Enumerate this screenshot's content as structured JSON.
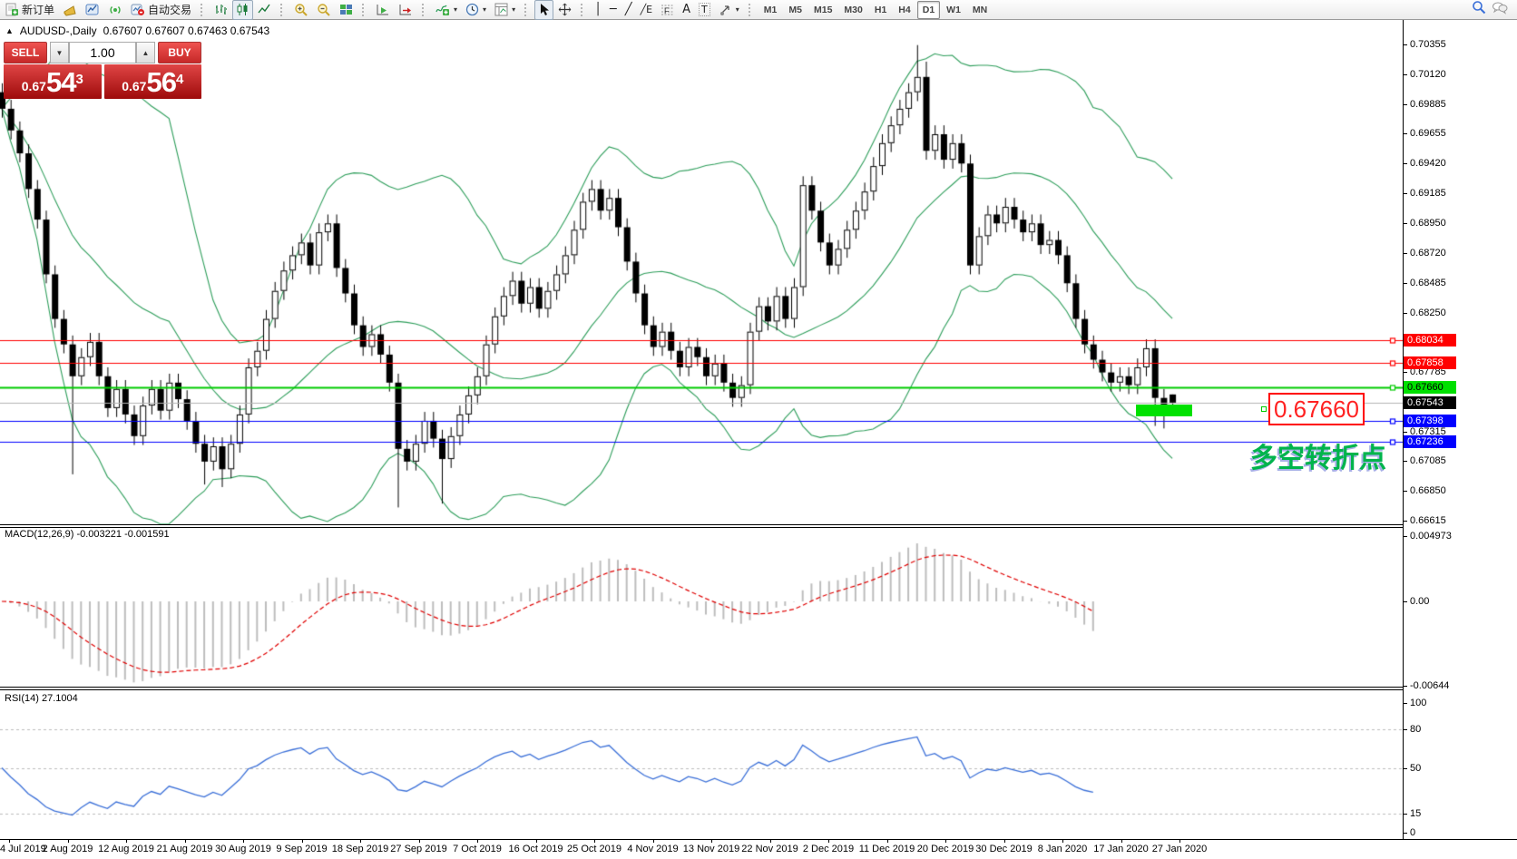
{
  "toolbar": {
    "new_order_label": "新订单",
    "autotrade_label": "自动交易",
    "timeframes": [
      "M1",
      "M5",
      "M15",
      "M30",
      "H1",
      "H4",
      "D1",
      "W1",
      "MN"
    ],
    "active_timeframe": "D1",
    "tool_glyphs": {
      "vline": "│",
      "hline": "─",
      "trend": "╱",
      "channel": "╱E",
      "fibo": "F",
      "text": "A",
      "label": "T",
      "dropdown": "▾",
      "cross": "✛"
    }
  },
  "chart": {
    "collapse_arrow": "▲",
    "title": "AUDUSD-,Daily",
    "ohlc_text": "0.67607 0.67607 0.67463 0.67543"
  },
  "trade_panel": {
    "sell_label": "SELL",
    "buy_label": "BUY",
    "volume": "1.00",
    "sell_small": "0.67",
    "sell_big": "54",
    "sell_sup": "3",
    "buy_small": "0.67",
    "buy_big": "56",
    "buy_sup": "4",
    "spin_down": "▼",
    "spin_up": "▲"
  },
  "macd_panel": {
    "label": "MACD(12,26,9) -0.003221 -0.001591"
  },
  "rsi_panel": {
    "label": "RSI(14) 27.1004"
  },
  "annotations": {
    "price_note": "0.67660",
    "cn_text": "多空转折点"
  },
  "chart_data": {
    "type": "candlestick",
    "symbol": "AUDUSD",
    "period": "Daily",
    "last_bar_display": {
      "open": "0.67607",
      "high": "0.67607",
      "low": "0.67463",
      "close": "0.67543"
    },
    "ylim": [
      0.66615,
      0.70355
    ],
    "first_open": 0.6998,
    "default_wick": 0.0007,
    "closes": [
      0.6985,
      0.6968,
      0.695,
      0.6922,
      0.6898,
      0.6855,
      0.682,
      0.68,
      0.6775,
      0.679,
      0.6802,
      0.6775,
      0.675,
      0.6765,
      0.6745,
      0.6728,
      0.6752,
      0.6765,
      0.6748,
      0.677,
      0.6757,
      0.674,
      0.6722,
      0.6708,
      0.672,
      0.6702,
      0.6722,
      0.6745,
      0.6782,
      0.6795,
      0.682,
      0.6842,
      0.6858,
      0.687,
      0.688,
      0.6862,
      0.6888,
      0.6895,
      0.686,
      0.684,
      0.6815,
      0.6798,
      0.6808,
      0.6792,
      0.677,
      0.6718,
      0.6708,
      0.6722,
      0.674,
      0.6726,
      0.671,
      0.6728,
      0.6745,
      0.676,
      0.6775,
      0.68,
      0.6822,
      0.6838,
      0.685,
      0.6832,
      0.6845,
      0.6828,
      0.6842,
      0.6855,
      0.687,
      0.689,
      0.6912,
      0.6922,
      0.6905,
      0.6915,
      0.6892,
      0.6865,
      0.684,
      0.6815,
      0.6798,
      0.681,
      0.6795,
      0.6782,
      0.6798,
      0.679,
      0.6775,
      0.6785,
      0.677,
      0.6758,
      0.6768,
      0.681,
      0.683,
      0.6818,
      0.6838,
      0.682,
      0.6845,
      0.6925,
      0.6905,
      0.688,
      0.6862,
      0.6875,
      0.689,
      0.6905,
      0.692,
      0.694,
      0.6958,
      0.6972,
      0.6985,
      0.6998,
      0.701,
      0.6952,
      0.6965,
      0.6945,
      0.6958,
      0.6942,
      0.6862,
      0.6885,
      0.6902,
      0.6895,
      0.6908,
      0.6898,
      0.6888,
      0.6895,
      0.6878,
      0.6882,
      0.687,
      0.6848,
      0.682,
      0.68,
      0.6788,
      0.6778,
      0.677,
      0.6775,
      0.6768,
      0.6782,
      0.6797,
      0.6758,
      0.6748,
      0.67543
    ],
    "wick_overrides": {
      "8": {
        "low": 0.6698
      },
      "23": {
        "low": 0.669
      },
      "25": {
        "low": 0.6688
      },
      "45": {
        "low": 0.6672
      },
      "50": {
        "low": 0.6675
      },
      "104": {
        "high": 0.7035
      },
      "105": {
        "high": 0.7022
      },
      "131": {
        "low": 0.6736
      },
      "132": {
        "low": 0.6734
      },
      "133": {
        "open": 0.67607,
        "high": 0.67607,
        "low": 0.67463
      }
    },
    "indicator_end_index": 124,
    "indicators": {
      "bollinger": {
        "period": 20,
        "deviation": 2,
        "color": "#2e9e5b"
      },
      "macd": {
        "fast": 12,
        "slow": 26,
        "signal": 9,
        "current_text": "-0.003221 -0.001591",
        "hist_color": "#bdbdbd",
        "signal_color": "#e00000"
      },
      "rsi": {
        "period": 14,
        "current": 27.1004,
        "color": "#3a6fd8"
      }
    },
    "hlines": [
      {
        "price": 0.68034,
        "color": "#ff0000",
        "tag_bg": "#ff0000",
        "tag_fg": "#ffffff",
        "marker": true
      },
      {
        "price": 0.67858,
        "color": "#ff0000",
        "tag_bg": "#ff0000",
        "tag_fg": "#ffffff",
        "marker": true
      },
      {
        "price": 0.6766,
        "color": "#00cc00",
        "tag_bg": "#00e000",
        "tag_fg": "#000000",
        "marker": true
      },
      {
        "price": 0.67543,
        "color": "#b4b4b4",
        "tag_bg": "#000000",
        "tag_fg": "#ffffff",
        "marker": false
      },
      {
        "price": 0.67398,
        "color": "#0000ff",
        "tag_bg": "#0000ff",
        "tag_fg": "#ffffff",
        "marker": true
      },
      {
        "price": 0.67236,
        "color": "#0000ff",
        "tag_bg": "#0000ff",
        "tag_fg": "#ffffff",
        "marker": true
      }
    ],
    "price_ticks": [
      "0.70355",
      "0.70120",
      "0.69885",
      "0.69655",
      "0.69420",
      "0.69185",
      "0.68950",
      "0.68720",
      "0.68485",
      "0.68250",
      "0.67785",
      "0.67315",
      "0.67085",
      "0.66850",
      "0.66615"
    ],
    "macd_ticks": [
      {
        "v": 0.004973,
        "t": "0.004973"
      },
      {
        "v": 0.0,
        "t": "0.00"
      },
      {
        "v": -0.00644,
        "t": "-0.00644"
      }
    ],
    "rsi_ticks": [
      {
        "v": 100,
        "t": "100",
        "dashed": false
      },
      {
        "v": 80,
        "t": "80",
        "dashed": true
      },
      {
        "v": 50,
        "t": "50",
        "dashed": true
      },
      {
        "v": 15,
        "t": "15",
        "dashed": true
      },
      {
        "v": 0,
        "t": "0",
        "dashed": false
      }
    ],
    "x_labels": [
      "4 Jul 2019",
      "2 Aug 2019",
      "12 Aug 2019",
      "21 Aug 2019",
      "30 Aug 2019",
      "9 Sep 2019",
      "18 Sep 2019",
      "27 Sep 2019",
      "7 Oct 2019",
      "16 Oct 2019",
      "25 Oct 2019",
      "4 Nov 2019",
      "13 Nov 2019",
      "22 Nov 2019",
      "2 Dec 2019",
      "11 Dec 2019",
      "20 Dec 2019",
      "30 Dec 2019",
      "8 Jan 2020",
      "17 Jan 2020",
      "27 Jan 2020"
    ]
  }
}
